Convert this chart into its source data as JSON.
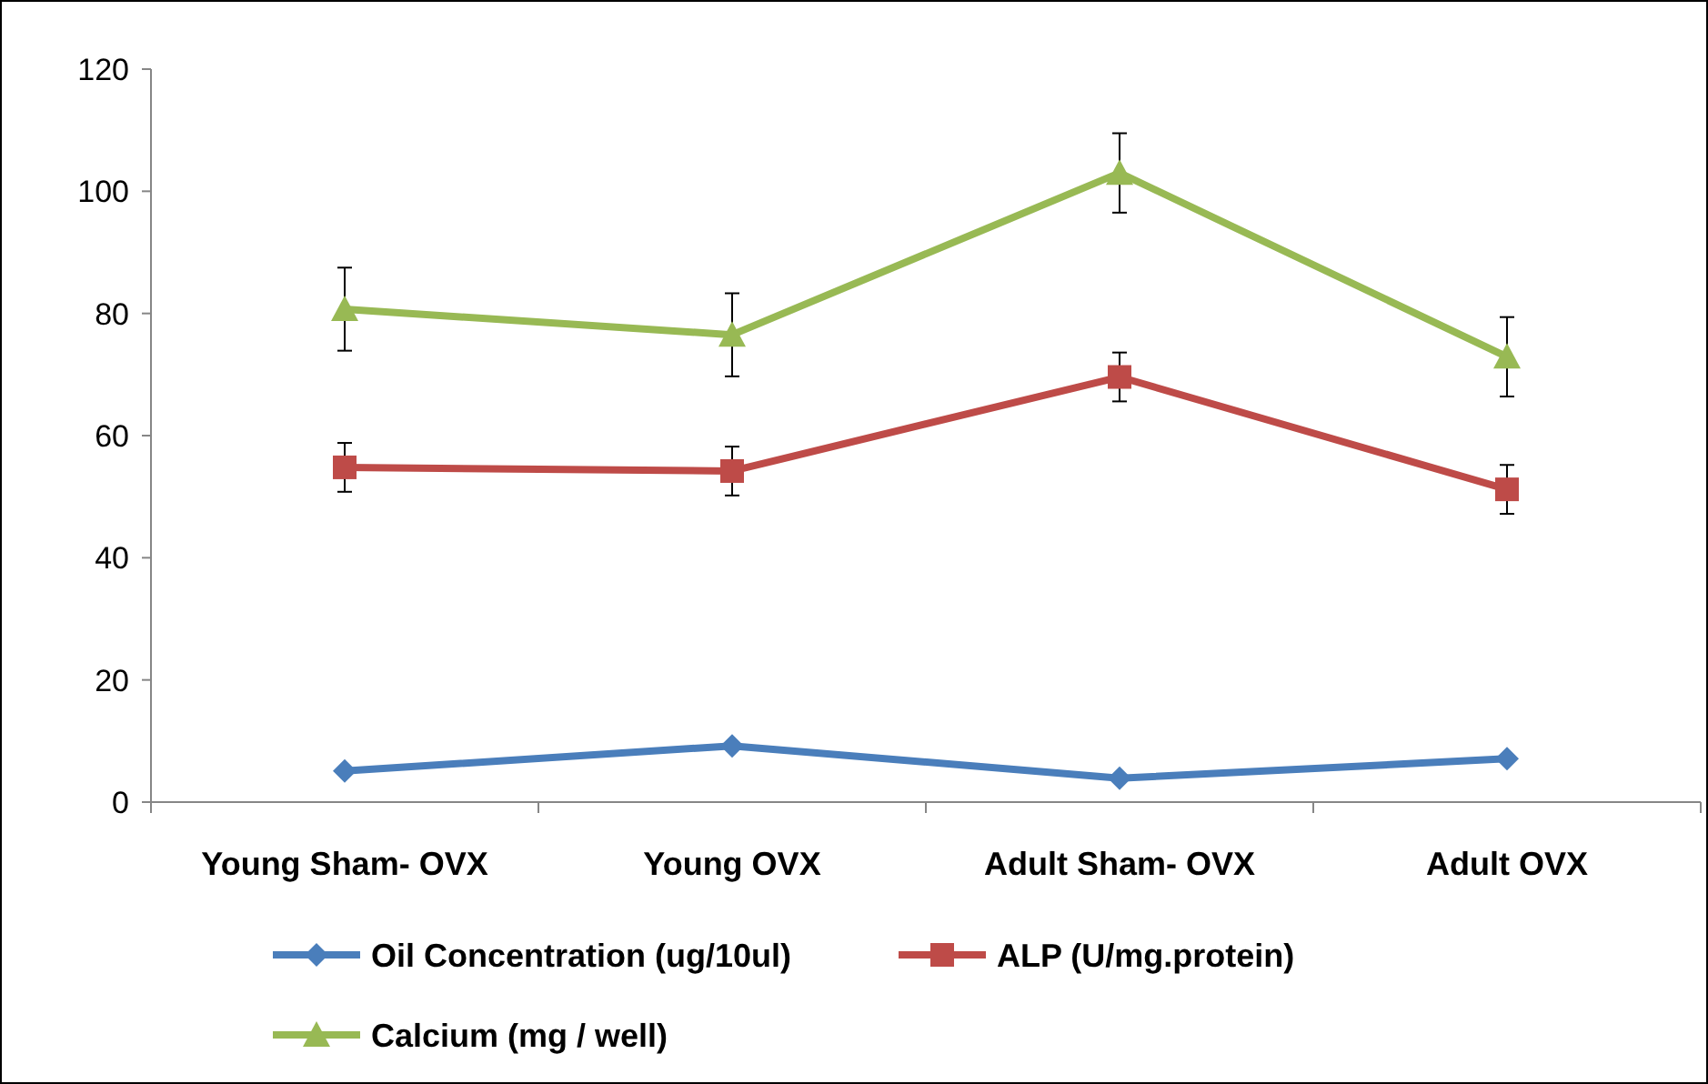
{
  "chart_data": {
    "type": "line",
    "categories": [
      "Young Sham- OVX",
      "Young OVX",
      "Adult Sham- OVX",
      "Adult OVX"
    ],
    "ylim": [
      0,
      120
    ],
    "yticks": [
      0,
      20,
      40,
      60,
      80,
      100,
      120
    ],
    "grid": false,
    "legend": "bottom",
    "line_style": "solid",
    "series": [
      {
        "name": "Oil Concentration (ug/10ul)",
        "color": "#4a7ebb",
        "marker": "diamond",
        "values": [
          5.1,
          9.2,
          3.9,
          7.1
        ]
      },
      {
        "name": "ALP (U/mg.protein)",
        "color": "#be4b48",
        "marker": "square",
        "values": [
          54.8,
          54.2,
          69.6,
          51.2
        ],
        "errors": [
          4,
          4,
          4,
          4
        ]
      },
      {
        "name": "Calcium (mg / well)",
        "color": "#98b954",
        "marker": "triangle",
        "values": [
          80.7,
          76.5,
          103,
          72.9
        ],
        "errors": [
          6.8,
          6.8,
          6.5,
          6.5
        ]
      }
    ]
  }
}
